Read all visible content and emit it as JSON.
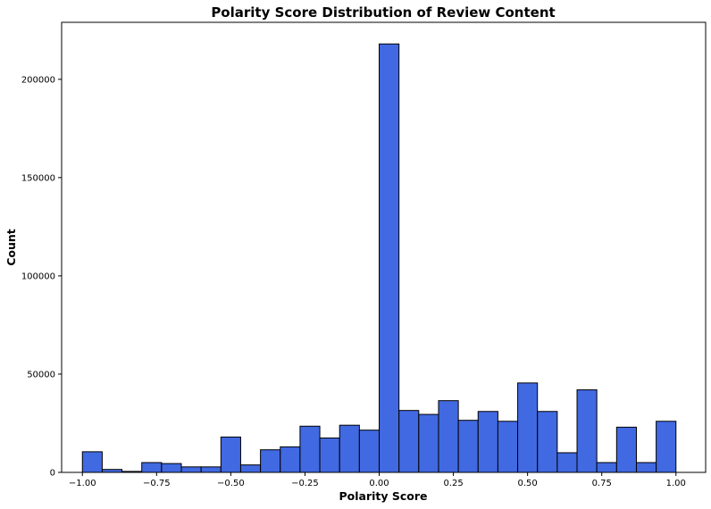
{
  "chart_data": {
    "type": "bar",
    "title": "Polarity Score Distribution of Review Content",
    "xlabel": "Polarity Score",
    "ylabel": "Count",
    "xlim": [
      -1.07,
      1.1
    ],
    "ylim": [
      0,
      229000
    ],
    "x_ticks": [
      -1.0,
      -0.75,
      -0.5,
      -0.25,
      0.0,
      0.25,
      0.5,
      0.75,
      1.0
    ],
    "x_tick_labels": [
      "−1.00",
      "−0.75",
      "−0.50",
      "−0.25",
      "0.00",
      "0.25",
      "0.50",
      "0.75",
      "1.00"
    ],
    "y_ticks": [
      0,
      50000,
      100000,
      150000,
      200000
    ],
    "y_tick_labels": [
      "0",
      "50000",
      "100000",
      "150000",
      "200000"
    ],
    "bin_edges": [
      -1.0,
      -0.9333,
      -0.8667,
      -0.8,
      -0.7333,
      -0.6667,
      -0.6,
      -0.5333,
      -0.4667,
      -0.4,
      -0.3333,
      -0.2667,
      -0.2,
      -0.1333,
      -0.0667,
      0.0,
      0.0667,
      0.1333,
      0.2,
      0.2667,
      0.3333,
      0.4,
      0.4667,
      0.5333,
      0.6,
      0.6667,
      0.7333,
      0.8,
      0.8667,
      0.9333,
      1.0
    ],
    "values": [
      10500,
      1500,
      500,
      5000,
      4500,
      2800,
      2800,
      18000,
      3800,
      11500,
      13000,
      23500,
      17500,
      24000,
      21500,
      218000,
      31500,
      29500,
      36500,
      26500,
      31000,
      26000,
      45500,
      31000,
      10000,
      42000,
      5000,
      23000,
      5000,
      26000
    ],
    "bar_color": "#4169e1",
    "edge_color": "#000000",
    "grid": false
  }
}
